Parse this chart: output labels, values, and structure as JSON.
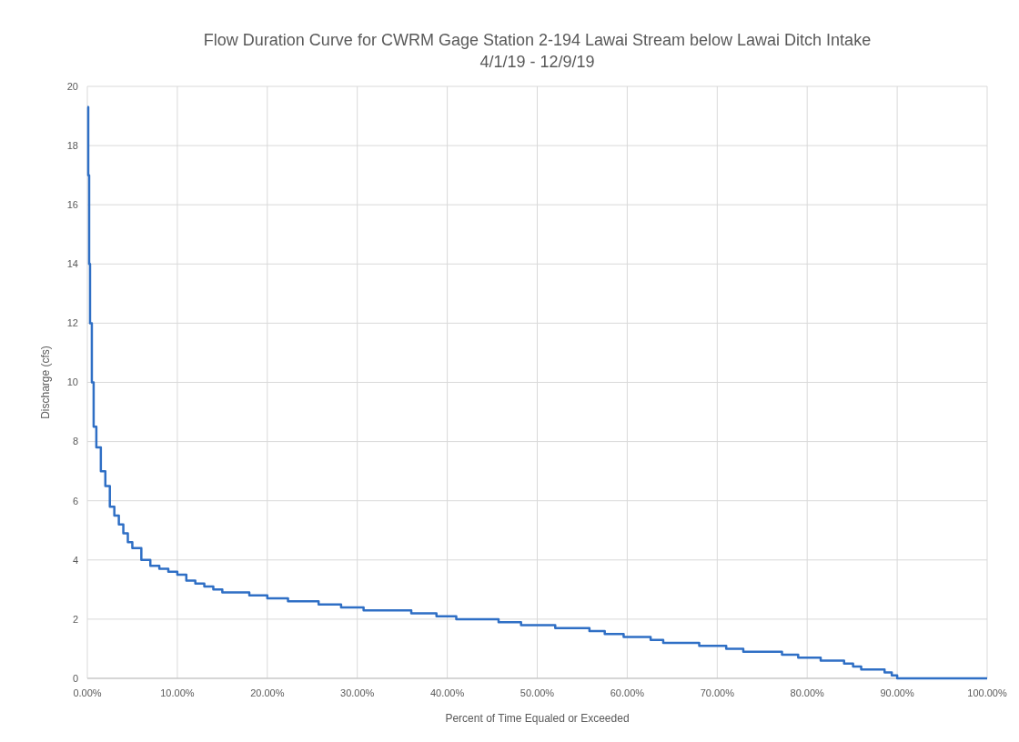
{
  "chart_data": {
    "type": "step",
    "title": "Flow Duration Curve for CWRM Gage Station 2-194 Lawai Stream below Lawai Ditch Intake",
    "subtitle": "4/1/19 - 12/9/19",
    "xlabel": "Percent of Time Equaled or Exceeded",
    "ylabel": "Discharge (cfs)",
    "x": [
      0,
      0.1,
      0.2,
      0.3,
      0.5,
      0.7,
      1.0,
      1.5,
      2.0,
      2.5,
      3.0,
      3.5,
      4.0,
      4.5,
      5.0,
      6.0,
      7.0,
      8.0,
      9.0,
      10.0,
      11.0,
      12.0,
      13.0,
      14.0,
      15.0,
      18.0,
      20.0,
      22.3,
      25.7,
      28.2,
      30.7,
      36.0,
      38.8,
      41.0,
      45.7,
      48.2,
      52.0,
      55.8,
      57.5,
      59.6,
      62.6,
      64.0,
      68.0,
      71.0,
      72.9,
      77.2,
      79.0,
      81.5,
      84.1,
      85.1,
      86.0,
      88.6,
      89.4,
      90.0,
      100
    ],
    "series": [
      {
        "color": "#2f6fc5",
        "values": [
          19.3,
          17,
          14,
          12,
          10,
          8.5,
          7.8,
          7.0,
          6.5,
          5.8,
          5.5,
          5.2,
          4.9,
          4.6,
          4.4,
          4.0,
          3.8,
          3.7,
          3.6,
          3.5,
          3.3,
          3.2,
          3.1,
          3.0,
          2.9,
          2.8,
          2.7,
          2.6,
          2.5,
          2.4,
          2.3,
          2.2,
          2.1,
          2.0,
          1.9,
          1.8,
          1.7,
          1.6,
          1.5,
          1.4,
          1.3,
          1.2,
          1.1,
          1.0,
          0.9,
          0.8,
          0.7,
          0.6,
          0.5,
          0.4,
          0.3,
          0.2,
          0.1,
          0,
          0
        ]
      }
    ],
    "xlim": [
      0,
      100
    ],
    "xticks": [
      {
        "value": 0,
        "label": "0.00%"
      },
      {
        "value": 10,
        "label": "10.00%"
      },
      {
        "value": 20,
        "label": "20.00%"
      },
      {
        "value": 30,
        "label": "30.00%"
      },
      {
        "value": 40,
        "label": "40.00%"
      },
      {
        "value": 50,
        "label": "50.00%"
      },
      {
        "value": 60,
        "label": "60.00%"
      },
      {
        "value": 70,
        "label": "70.00%"
      },
      {
        "value": 80,
        "label": "80.00%"
      },
      {
        "value": 90,
        "label": "90.00%"
      },
      {
        "value": 100,
        "label": "100.00%"
      }
    ],
    "ylim": [
      0,
      20
    ],
    "yticks": [
      0,
      2,
      4,
      6,
      8,
      10,
      12,
      14,
      16,
      18,
      20
    ],
    "grid": true,
    "line_style": "solid"
  }
}
